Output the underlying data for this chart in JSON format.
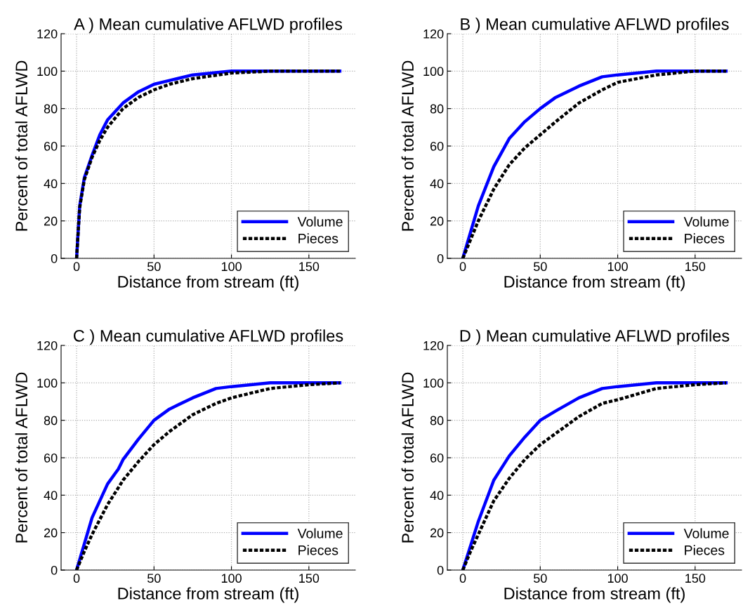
{
  "chart_data": [
    {
      "type": "line",
      "title": "A ) Mean cumulative AFLWD profiles",
      "xlabel": "Distance from stream (ft)",
      "ylabel": "Percent of total AFLWD",
      "xlim": [
        -10,
        180
      ],
      "xticks": [
        0,
        50,
        100,
        150
      ],
      "ylim": [
        0,
        120
      ],
      "yticks": [
        0,
        20,
        40,
        60,
        80,
        100,
        120
      ],
      "grid": true,
      "legend": "bottom right",
      "x": [
        0,
        2,
        5,
        10,
        15,
        20,
        30,
        40,
        50,
        60,
        75,
        100,
        125,
        170
      ],
      "series": [
        {
          "name": "Volume",
          "color": "#0000ff",
          "line_style": "solid",
          "values": [
            0,
            28,
            43,
            55,
            66,
            74,
            83,
            89,
            93,
            95,
            98,
            100,
            100,
            100
          ]
        },
        {
          "name": "Pieces",
          "color": "#000000",
          "line_style": "dotted",
          "values": [
            0,
            27,
            42,
            54,
            63,
            70,
            80,
            86,
            90,
            93,
            96,
            99,
            100,
            100
          ]
        }
      ]
    },
    {
      "type": "line",
      "title": "B ) Mean cumulative AFLWD profiles",
      "xlabel": "Distance from stream (ft)",
      "ylabel": "Percent of total AFLWD",
      "xlim": [
        -10,
        180
      ],
      "xticks": [
        0,
        50,
        100,
        150
      ],
      "ylim": [
        0,
        120
      ],
      "yticks": [
        0,
        20,
        40,
        60,
        80,
        100,
        120
      ],
      "grid": true,
      "legend": "bottom right",
      "x": [
        0,
        5,
        10,
        20,
        30,
        40,
        50,
        60,
        75,
        90,
        100,
        125,
        150,
        170
      ],
      "series": [
        {
          "name": "Volume",
          "color": "#0000ff",
          "line_style": "solid",
          "values": [
            0,
            14,
            28,
            49,
            64,
            73,
            80,
            86,
            92,
            97,
            98,
            100,
            100,
            100
          ]
        },
        {
          "name": "Pieces",
          "color": "#000000",
          "line_style": "dotted",
          "values": [
            0,
            10,
            20,
            37,
            50,
            59,
            66,
            73,
            83,
            90,
            94,
            98,
            100,
            100
          ]
        }
      ]
    },
    {
      "type": "line",
      "title": "C ) Mean cumulative AFLWD profiles",
      "xlabel": "Distance from stream (ft)",
      "ylabel": "Percent of total AFLWD",
      "xlim": [
        -10,
        180
      ],
      "xticks": [
        0,
        50,
        100,
        150
      ],
      "ylim": [
        0,
        120
      ],
      "yticks": [
        0,
        20,
        40,
        60,
        80,
        100,
        120
      ],
      "grid": true,
      "legend": "bottom right",
      "x": [
        0,
        5,
        10,
        20,
        27,
        30,
        40,
        50,
        60,
        75,
        90,
        100,
        125,
        150,
        170
      ],
      "series": [
        {
          "name": "Volume",
          "color": "#0000ff",
          "line_style": "solid",
          "values": [
            0,
            14,
            28,
            46,
            54,
            59,
            70,
            80,
            86,
            92,
            97,
            98,
            100,
            100,
            100
          ]
        },
        {
          "name": "Pieces",
          "color": "#000000",
          "line_style": "dotted",
          "values": [
            0,
            10,
            19,
            35,
            44,
            48,
            58,
            67,
            74,
            83,
            89,
            92,
            97,
            99,
            100
          ]
        }
      ]
    },
    {
      "type": "line",
      "title": "D ) Mean cumulative AFLWD profiles",
      "xlabel": "Distance from stream (ft)",
      "ylabel": "Percent of total AFLWD",
      "xlim": [
        -10,
        180
      ],
      "xticks": [
        0,
        50,
        100,
        150
      ],
      "ylim": [
        0,
        120
      ],
      "yticks": [
        0,
        20,
        40,
        60,
        80,
        100,
        120
      ],
      "grid": true,
      "legend": "bottom right",
      "x": [
        0,
        5,
        10,
        20,
        30,
        40,
        50,
        60,
        75,
        90,
        100,
        125,
        150,
        170
      ],
      "series": [
        {
          "name": "Volume",
          "color": "#0000ff",
          "line_style": "solid",
          "values": [
            0,
            13,
            26,
            48,
            61,
            71,
            80,
            85,
            92,
            97,
            98,
            100,
            100,
            100
          ]
        },
        {
          "name": "Pieces",
          "color": "#000000",
          "line_style": "dotted",
          "values": [
            0,
            10,
            19,
            37,
            49,
            59,
            67,
            73,
            82,
            89,
            91,
            97,
            99,
            100
          ]
        }
      ]
    }
  ]
}
